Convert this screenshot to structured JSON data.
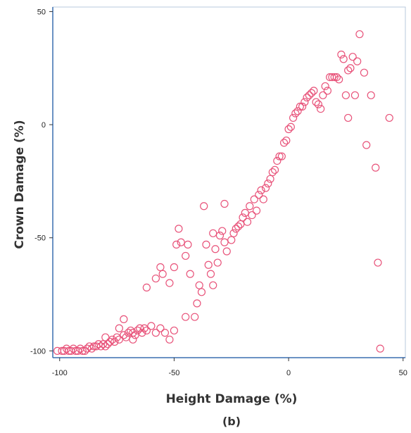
{
  "chart_data": {
    "type": "scatter",
    "title": "",
    "caption": "(b)",
    "xlabel": "Height Damage (%)",
    "ylabel": "Crown Damage (%)",
    "xlim": [
      -103,
      51
    ],
    "ylim": [
      -103,
      52
    ],
    "xticks": [
      -100,
      -50,
      0,
      50
    ],
    "yticks": [
      -100,
      -50,
      0,
      50
    ],
    "xtick_labels": [
      "-100",
      "-50",
      "0",
      "50"
    ],
    "ytick_labels": [
      "-100",
      "-50",
      "0",
      "50"
    ],
    "grid": false,
    "marker": "hollow-circle",
    "colors": {
      "marker": "#e8537a",
      "axis": "#3a6fb0",
      "frame": "#b8c8dc"
    },
    "points": [
      [
        -101,
        -100
      ],
      [
        -99,
        -100
      ],
      [
        -98,
        -100
      ],
      [
        -97,
        -99
      ],
      [
        -96,
        -100
      ],
      [
        -95,
        -100
      ],
      [
        -94,
        -99
      ],
      [
        -93,
        -100
      ],
      [
        -92,
        -100
      ],
      [
        -91,
        -99
      ],
      [
        -90,
        -100
      ],
      [
        -89,
        -100
      ],
      [
        -88,
        -99
      ],
      [
        -87,
        -98
      ],
      [
        -86,
        -99
      ],
      [
        -85,
        -98
      ],
      [
        -84,
        -98
      ],
      [
        -83,
        -97
      ],
      [
        -82,
        -98
      ],
      [
        -81,
        -97
      ],
      [
        -80,
        -98
      ],
      [
        -79,
        -97
      ],
      [
        -78,
        -96
      ],
      [
        -77,
        -95
      ],
      [
        -76,
        -96
      ],
      [
        -75,
        -94
      ],
      [
        -74,
        -95
      ],
      [
        -72,
        -93
      ],
      [
        -71,
        -94
      ],
      [
        -70,
        -92
      ],
      [
        -69,
        -91
      ],
      [
        -68,
        -92
      ],
      [
        -67,
        -93
      ],
      [
        -66,
        -91
      ],
      [
        -65,
        -90
      ],
      [
        -64,
        -92
      ],
      [
        -63,
        -90
      ],
      [
        -62,
        -91
      ],
      [
        -60,
        -89
      ],
      [
        -58,
        -92
      ],
      [
        -56,
        -90
      ],
      [
        -54,
        -92
      ],
      [
        -52,
        -95
      ],
      [
        -50,
        -91
      ],
      [
        -80,
        -94
      ],
      [
        -72,
        -86
      ],
      [
        -74,
        -90
      ],
      [
        -68,
        -95
      ],
      [
        -62,
        -72
      ],
      [
        -58,
        -68
      ],
      [
        -56,
        -63
      ],
      [
        -55,
        -66
      ],
      [
        -52,
        -70
      ],
      [
        -50,
        -63
      ],
      [
        -49,
        -53
      ],
      [
        -48,
        -46
      ],
      [
        -47,
        -52
      ],
      [
        -45,
        -85
      ],
      [
        -45,
        -58
      ],
      [
        -44,
        -53
      ],
      [
        -43,
        -66
      ],
      [
        -41,
        -85
      ],
      [
        -40,
        -79
      ],
      [
        -39,
        -71
      ],
      [
        -38,
        -74
      ],
      [
        -37,
        -36
      ],
      [
        -36,
        -53
      ],
      [
        -35,
        -62
      ],
      [
        -34,
        -66
      ],
      [
        -33,
        -48
      ],
      [
        -33,
        -71
      ],
      [
        -32,
        -55
      ],
      [
        -31,
        -61
      ],
      [
        -30,
        -49
      ],
      [
        -29,
        -47
      ],
      [
        -28,
        -35
      ],
      [
        -28,
        -52
      ],
      [
        -27,
        -56
      ],
      [
        -25,
        -51
      ],
      [
        -24,
        -48
      ],
      [
        -23,
        -46
      ],
      [
        -22,
        -45
      ],
      [
        -21,
        -44
      ],
      [
        -20,
        -41
      ],
      [
        -19,
        -39
      ],
      [
        -18,
        -43
      ],
      [
        -17,
        -36
      ],
      [
        -16,
        -40
      ],
      [
        -15,
        -33
      ],
      [
        -14,
        -38
      ],
      [
        -13,
        -31
      ],
      [
        -12,
        -29
      ],
      [
        -11,
        -33
      ],
      [
        -10,
        -28
      ],
      [
        -9,
        -26
      ],
      [
        -8,
        -24
      ],
      [
        -7,
        -21
      ],
      [
        -6,
        -20
      ],
      [
        -5,
        -16
      ],
      [
        -4,
        -14
      ],
      [
        -3,
        -14
      ],
      [
        -2,
        -8
      ],
      [
        -1,
        -7
      ],
      [
        0,
        -2
      ],
      [
        1,
        -1
      ],
      [
        2,
        3
      ],
      [
        3,
        5
      ],
      [
        4,
        6
      ],
      [
        5,
        8
      ],
      [
        6,
        8
      ],
      [
        7,
        10
      ],
      [
        8,
        12
      ],
      [
        9,
        13
      ],
      [
        10,
        14
      ],
      [
        11,
        15
      ],
      [
        12,
        10
      ],
      [
        13,
        9
      ],
      [
        14,
        7
      ],
      [
        15,
        13
      ],
      [
        16,
        17
      ],
      [
        17,
        15
      ],
      [
        18,
        21
      ],
      [
        19,
        21
      ],
      [
        20,
        21
      ],
      [
        21,
        21
      ],
      [
        22,
        20
      ],
      [
        23,
        31
      ],
      [
        24,
        29
      ],
      [
        25,
        13
      ],
      [
        26,
        3
      ],
      [
        26,
        24
      ],
      [
        27,
        25
      ],
      [
        28,
        30
      ],
      [
        29,
        13
      ],
      [
        30,
        28
      ],
      [
        31,
        40
      ],
      [
        33,
        23
      ],
      [
        34,
        -9
      ],
      [
        36,
        13
      ],
      [
        38,
        -19
      ],
      [
        39,
        -61
      ],
      [
        40,
        -99
      ],
      [
        44,
        3
      ]
    ]
  }
}
